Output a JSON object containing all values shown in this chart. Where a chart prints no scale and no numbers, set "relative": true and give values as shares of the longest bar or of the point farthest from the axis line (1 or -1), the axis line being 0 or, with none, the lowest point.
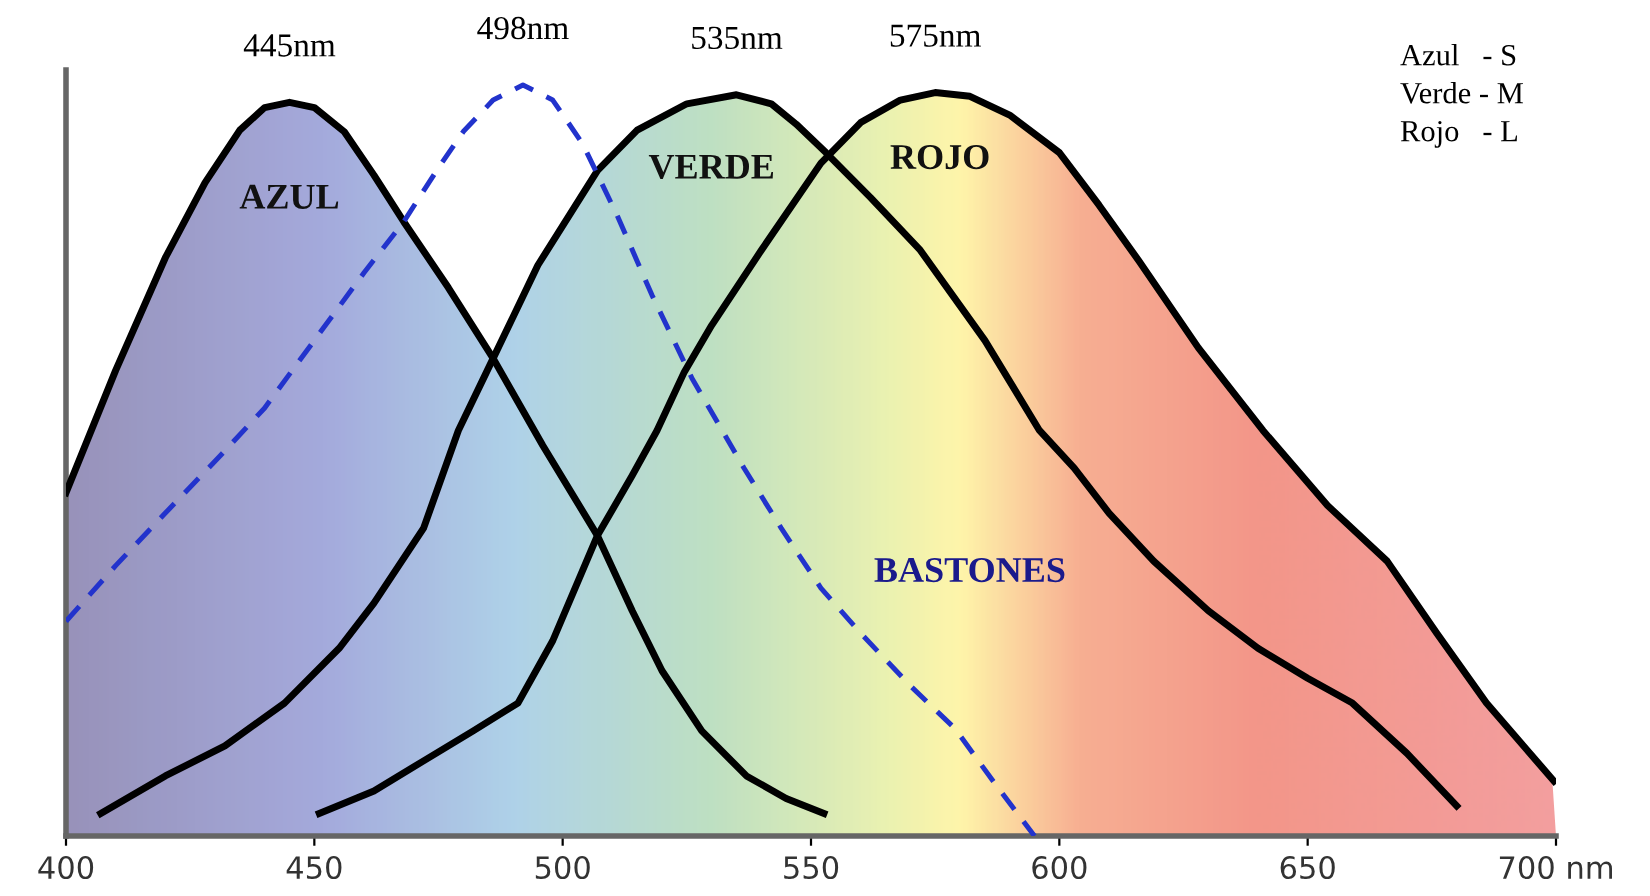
{
  "chart_data": {
    "type": "line",
    "relative": true,
    "xlim": [
      400,
      700
    ],
    "xticks": [
      400,
      450,
      500,
      550,
      600,
      650,
      {
        "value": 700,
        "label": "700 nm"
      }
    ],
    "series": [
      {
        "name": "AZUL",
        "color": "#000000",
        "x": [
          400,
          410,
          420,
          428,
          435,
          440,
          445,
          450,
          456,
          462,
          468,
          477,
          486,
          496,
          507,
          514,
          520,
          528,
          537,
          545,
          552.6
        ],
        "values": [
          0.457,
          0.62,
          0.77,
          0.87,
          0.94,
          0.97,
          0.977,
          0.97,
          0.938,
          0.88,
          0.818,
          0.73,
          0.636,
          0.52,
          0.4,
          0.3,
          0.22,
          0.14,
          0.08,
          0.05,
          0.03
        ]
      },
      {
        "name": "VERDE",
        "color": "#000000",
        "x": [
          407,
          420,
          432,
          444,
          455,
          462,
          472,
          479,
          486,
          495,
          507,
          515,
          525,
          535,
          542,
          547,
          553,
          562,
          572,
          585,
          596,
          603,
          610,
          619,
          630,
          640,
          650,
          659,
          670,
          680
        ],
        "values": [
          0.03,
          0.08,
          0.12,
          0.177,
          0.25,
          0.31,
          0.41,
          0.54,
          0.636,
          0.76,
          0.886,
          0.94,
          0.975,
          0.987,
          0.975,
          0.948,
          0.91,
          0.85,
          0.78,
          0.66,
          0.54,
          0.49,
          0.43,
          0.366,
          0.3,
          0.25,
          0.21,
          0.177,
          0.11,
          0.04
        ]
      },
      {
        "name": "ROJO",
        "color": "#000000",
        "x": [
          451,
          462,
          472,
          482,
          491,
          498,
          507,
          514,
          519,
          524.5,
          530,
          540,
          552,
          560,
          568,
          575,
          582,
          590,
          600,
          608,
          616,
          628,
          641,
          654,
          666,
          676,
          686,
          699.6
        ],
        "values": [
          0.03,
          0.06,
          0.1,
          0.14,
          0.177,
          0.26,
          0.4,
          0.48,
          0.54,
          0.618,
          0.68,
          0.78,
          0.896,
          0.95,
          0.98,
          0.99,
          0.985,
          0.96,
          0.91,
          0.84,
          0.766,
          0.65,
          0.54,
          0.44,
          0.366,
          0.27,
          0.177,
          0.073
        ]
      },
      {
        "name": "BASTONES",
        "color": "#2233cc",
        "line_style": "dashed",
        "x": [
          400,
          410,
          420,
          431,
          440,
          450,
          460,
          468,
          475,
          480,
          486,
          492,
          498,
          504,
          511,
          518,
          526,
          536.5,
          544,
          552,
          560,
          570,
          579,
          587,
          595
        ],
        "values": [
          0.286,
          0.36,
          0.43,
          0.506,
          0.57,
          0.66,
          0.75,
          0.818,
          0.89,
          0.938,
          0.98,
          1.0,
          0.98,
          0.922,
          0.826,
          0.72,
          0.61,
          0.49,
          0.41,
          0.33,
          0.27,
          0.2,
          0.143,
          0.07,
          0.0
        ]
      }
    ],
    "annotations": [
      {
        "text": "445nm",
        "x": 445,
        "y": 0.977
      },
      {
        "text": "498nm",
        "x": 492,
        "y": 1.0
      },
      {
        "text": "535nm",
        "x": 535,
        "y": 0.987
      },
      {
        "text": "575nm",
        "x": 575,
        "y": 0.99
      },
      "Azul   - S",
      "Verde - M",
      "Rojo   - L"
    ]
  }
}
